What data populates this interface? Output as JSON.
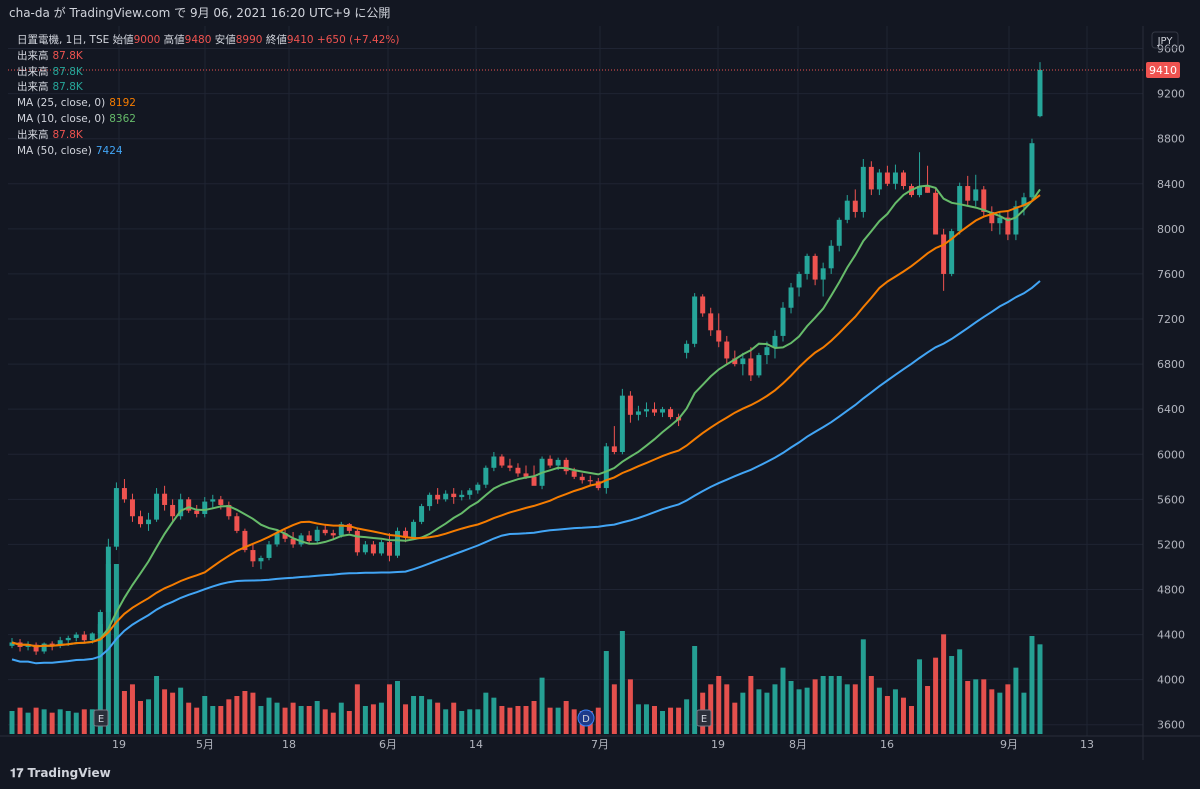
{
  "header": {
    "published": "cha-da が TradingView.com で 9月 06, 2021 16:20 UTC+9 に公開"
  },
  "footer": {
    "brand": "TradingView"
  },
  "colors": {
    "up": "#26a69a",
    "down": "#ef5350",
    "ma10": "#66bb6a",
    "ma25": "#f57c00",
    "ma50": "#42a5f5",
    "bg": "#131722",
    "grid": "#1f2433"
  },
  "legend": {
    "symbol_line": {
      "label": "日置電機, 1日, TSE",
      "o_label": "始値",
      "o": "9000",
      "h_label": "高値",
      "h": "9480",
      "l_label": "安値",
      "l": "8990",
      "c_label": "終値",
      "c": "9410",
      "change": "+650 (+7.42%)"
    },
    "rows": [
      {
        "label": "出来高",
        "value": "87.8K",
        "color": "#ef5350"
      },
      {
        "label": "出来高",
        "value": "87.8K",
        "color": "#26a69a"
      },
      {
        "label": "出来高",
        "value": "87.8K",
        "color": "#26a69a"
      },
      {
        "label": "MA (25, close, 0)",
        "value": "8192",
        "color": "#f57c00"
      },
      {
        "label": "MA (10, close, 0)",
        "value": "8362",
        "color": "#66bb6a"
      },
      {
        "label": "出来高",
        "value": "87.8K",
        "color": "#ef5350"
      },
      {
        "label": "MA (50, close)",
        "value": "7424",
        "color": "#42a5f5"
      }
    ]
  },
  "currency": "JPY",
  "last_price_label": "9410",
  "chart_data": {
    "type": "candlestick",
    "ylim": [
      3500,
      9800
    ],
    "y_ticks": [
      3600,
      4000,
      4400,
      4800,
      5200,
      5600,
      6000,
      6400,
      6800,
      7200,
      7600,
      8000,
      8400,
      8800,
      9200,
      9600
    ],
    "x_labels": [
      "19",
      "5月",
      "18",
      "6月",
      "14",
      "7月",
      "19",
      "8月",
      "16",
      "9月",
      "13"
    ],
    "event_markers": [
      "E",
      "D",
      "E"
    ],
    "candles": [
      [
        4300,
        4370,
        4280,
        4330
      ],
      [
        4330,
        4360,
        4250,
        4290
      ],
      [
        4290,
        4340,
        4260,
        4310
      ],
      [
        4310,
        4330,
        4220,
        4250
      ],
      [
        4250,
        4330,
        4230,
        4320
      ],
      [
        4320,
        4340,
        4260,
        4300
      ],
      [
        4300,
        4380,
        4280,
        4350
      ],
      [
        4350,
        4390,
        4300,
        4370
      ],
      [
        4370,
        4420,
        4340,
        4400
      ],
      [
        4400,
        4430,
        4330,
        4350
      ],
      [
        4350,
        4420,
        4320,
        4410
      ],
      [
        4410,
        4620,
        4390,
        4600
      ],
      [
        4600,
        5250,
        4550,
        5180
      ],
      [
        5180,
        5750,
        5150,
        5700
      ],
      [
        5700,
        5780,
        5570,
        5600
      ],
      [
        5600,
        5650,
        5400,
        5450
      ],
      [
        5450,
        5500,
        5350,
        5380
      ],
      [
        5380,
        5480,
        5320,
        5420
      ],
      [
        5420,
        5700,
        5400,
        5650
      ],
      [
        5650,
        5720,
        5500,
        5550
      ],
      [
        5550,
        5600,
        5400,
        5450
      ],
      [
        5450,
        5650,
        5420,
        5600
      ],
      [
        5600,
        5620,
        5480,
        5500
      ],
      [
        5500,
        5550,
        5440,
        5470
      ],
      [
        5470,
        5620,
        5440,
        5580
      ],
      [
        5580,
        5640,
        5520,
        5600
      ],
      [
        5600,
        5630,
        5510,
        5550
      ],
      [
        5550,
        5580,
        5420,
        5450
      ],
      [
        5450,
        5480,
        5300,
        5320
      ],
      [
        5320,
        5340,
        5130,
        5150
      ],
      [
        5150,
        5200,
        5000,
        5050
      ],
      [
        5050,
        5100,
        4980,
        5080
      ],
      [
        5080,
        5230,
        5060,
        5200
      ],
      [
        5200,
        5320,
        5180,
        5300
      ],
      [
        5300,
        5330,
        5220,
        5250
      ],
      [
        5250,
        5310,
        5170,
        5200
      ],
      [
        5200,
        5300,
        5180,
        5280
      ],
      [
        5280,
        5320,
        5200,
        5230
      ],
      [
        5230,
        5360,
        5210,
        5330
      ],
      [
        5330,
        5380,
        5280,
        5300
      ],
      [
        5300,
        5330,
        5250,
        5280
      ],
      [
        5280,
        5400,
        5260,
        5380
      ],
      [
        5380,
        5390,
        5300,
        5320
      ],
      [
        5320,
        5350,
        5100,
        5130
      ],
      [
        5130,
        5230,
        5110,
        5200
      ],
      [
        5200,
        5230,
        5100,
        5120
      ],
      [
        5120,
        5240,
        5100,
        5220
      ],
      [
        5220,
        5300,
        5050,
        5100
      ],
      [
        5100,
        5350,
        5080,
        5320
      ],
      [
        5320,
        5350,
        5220,
        5260
      ],
      [
        5260,
        5420,
        5240,
        5400
      ],
      [
        5400,
        5560,
        5380,
        5540
      ],
      [
        5540,
        5660,
        5500,
        5640
      ],
      [
        5640,
        5700,
        5560,
        5600
      ],
      [
        5600,
        5680,
        5580,
        5650
      ],
      [
        5650,
        5700,
        5560,
        5620
      ],
      [
        5620,
        5680,
        5590,
        5640
      ],
      [
        5640,
        5700,
        5600,
        5680
      ],
      [
        5680,
        5750,
        5650,
        5730
      ],
      [
        5730,
        5900,
        5700,
        5880
      ],
      [
        5880,
        6020,
        5850,
        5980
      ],
      [
        5980,
        6000,
        5880,
        5900
      ],
      [
        5900,
        5960,
        5850,
        5880
      ],
      [
        5880,
        5920,
        5800,
        5830
      ],
      [
        5830,
        5900,
        5780,
        5800
      ],
      [
        5800,
        5900,
        5750,
        5720
      ],
      [
        5720,
        5980,
        5690,
        5960
      ],
      [
        5960,
        5990,
        5880,
        5900
      ],
      [
        5900,
        5970,
        5860,
        5950
      ],
      [
        5950,
        5970,
        5820,
        5850
      ],
      [
        5850,
        5880,
        5780,
        5800
      ],
      [
        5800,
        5830,
        5740,
        5770
      ],
      [
        5770,
        5810,
        5720,
        5760
      ],
      [
        5760,
        5790,
        5680,
        5700
      ],
      [
        5700,
        6100,
        5650,
        6070
      ],
      [
        6070,
        6250,
        6000,
        6020
      ],
      [
        6020,
        6580,
        6000,
        6520
      ],
      [
        6520,
        6560,
        6280,
        6350
      ],
      [
        6350,
        6430,
        6300,
        6380
      ],
      [
        6380,
        6460,
        6330,
        6400
      ],
      [
        6400,
        6460,
        6340,
        6370
      ],
      [
        6370,
        6420,
        6330,
        6400
      ],
      [
        6400,
        6420,
        6310,
        6330
      ],
      [
        6330,
        6360,
        6250,
        6300
      ],
      [
        6900,
        7010,
        6850,
        6980
      ],
      [
        6980,
        7430,
        6950,
        7400
      ],
      [
        7400,
        7420,
        7220,
        7250
      ],
      [
        7250,
        7300,
        7050,
        7100
      ],
      [
        7100,
        7250,
        6950,
        7000
      ],
      [
        7000,
        7050,
        6800,
        6850
      ],
      [
        6850,
        6920,
        6780,
        6800
      ],
      [
        6800,
        6900,
        6700,
        6850
      ],
      [
        6850,
        6950,
        6650,
        6700
      ],
      [
        6700,
        6900,
        6680,
        6880
      ],
      [
        6880,
        7000,
        6800,
        6950
      ],
      [
        6950,
        7100,
        6850,
        7050
      ],
      [
        7050,
        7350,
        7000,
        7300
      ],
      [
        7300,
        7520,
        7250,
        7480
      ],
      [
        7480,
        7620,
        7400,
        7600
      ],
      [
        7600,
        7780,
        7550,
        7760
      ],
      [
        7760,
        7780,
        7500,
        7550
      ],
      [
        7550,
        7700,
        7400,
        7650
      ],
      [
        7650,
        7900,
        7600,
        7850
      ],
      [
        7850,
        8100,
        7800,
        8080
      ],
      [
        8080,
        8300,
        8050,
        8250
      ],
      [
        8250,
        8350,
        8100,
        8150
      ],
      [
        8150,
        8620,
        8100,
        8550
      ],
      [
        8550,
        8600,
        8300,
        8350
      ],
      [
        8350,
        8530,
        8300,
        8500
      ],
      [
        8500,
        8560,
        8380,
        8400
      ],
      [
        8400,
        8570,
        8350,
        8500
      ],
      [
        8500,
        8520,
        8350,
        8380
      ],
      [
        8380,
        8400,
        8280,
        8300
      ],
      [
        8300,
        8680,
        8280,
        8380
      ],
      [
        8380,
        8560,
        8320,
        8320
      ],
      [
        8320,
        8360,
        7950,
        7950
      ],
      [
        7950,
        8000,
        7450,
        7600
      ],
      [
        7600,
        8000,
        7580,
        7980
      ],
      [
        7980,
        8410,
        7950,
        8380
      ],
      [
        8380,
        8470,
        8200,
        8250
      ],
      [
        8250,
        8480,
        8200,
        8350
      ],
      [
        8350,
        8380,
        8100,
        8150
      ],
      [
        8150,
        8200,
        7980,
        8050
      ],
      [
        8050,
        8150,
        7950,
        8100
      ],
      [
        8100,
        8150,
        7900,
        7950
      ],
      [
        7950,
        8250,
        7900,
        8200
      ],
      [
        8200,
        8320,
        8120,
        8280
      ],
      [
        8280,
        8800,
        8260,
        8760
      ],
      [
        9000,
        9480,
        8990,
        9410
      ]
    ]
  }
}
